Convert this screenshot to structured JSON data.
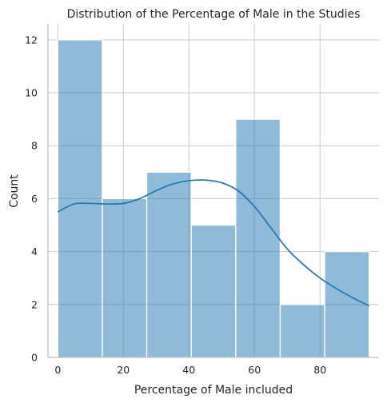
{
  "chart_data": {
    "type": "histogram",
    "title": "Distribution of the Percentage of Male in the Studies",
    "xlabel": "Percentage of Male included",
    "ylabel": "Count",
    "xlim": [
      -3,
      98
    ],
    "ylim": [
      0,
      12.6
    ],
    "xticks": [
      0,
      20,
      40,
      60,
      80
    ],
    "yticks": [
      0,
      2,
      4,
      6,
      8,
      10,
      12
    ],
    "bin_edges": [
      0,
      13.57,
      27.14,
      40.71,
      54.29,
      67.86,
      81.43,
      95
    ],
    "counts": [
      12,
      6,
      7,
      5,
      9,
      2,
      4
    ],
    "kde": {
      "x": [
        0,
        5,
        10,
        15,
        20,
        25,
        30,
        35,
        40,
        45,
        50,
        55,
        60,
        65,
        70,
        75,
        80,
        85,
        90,
        95
      ],
      "y": [
        5.5,
        5.8,
        5.82,
        5.8,
        5.82,
        6.0,
        6.3,
        6.55,
        6.68,
        6.7,
        6.6,
        6.3,
        5.7,
        4.9,
        4.1,
        3.5,
        3.0,
        2.6,
        2.25,
        1.95
      ]
    },
    "grid": true,
    "colors": {
      "bar": "#1f77b4",
      "kde": "#1f77b4"
    }
  }
}
